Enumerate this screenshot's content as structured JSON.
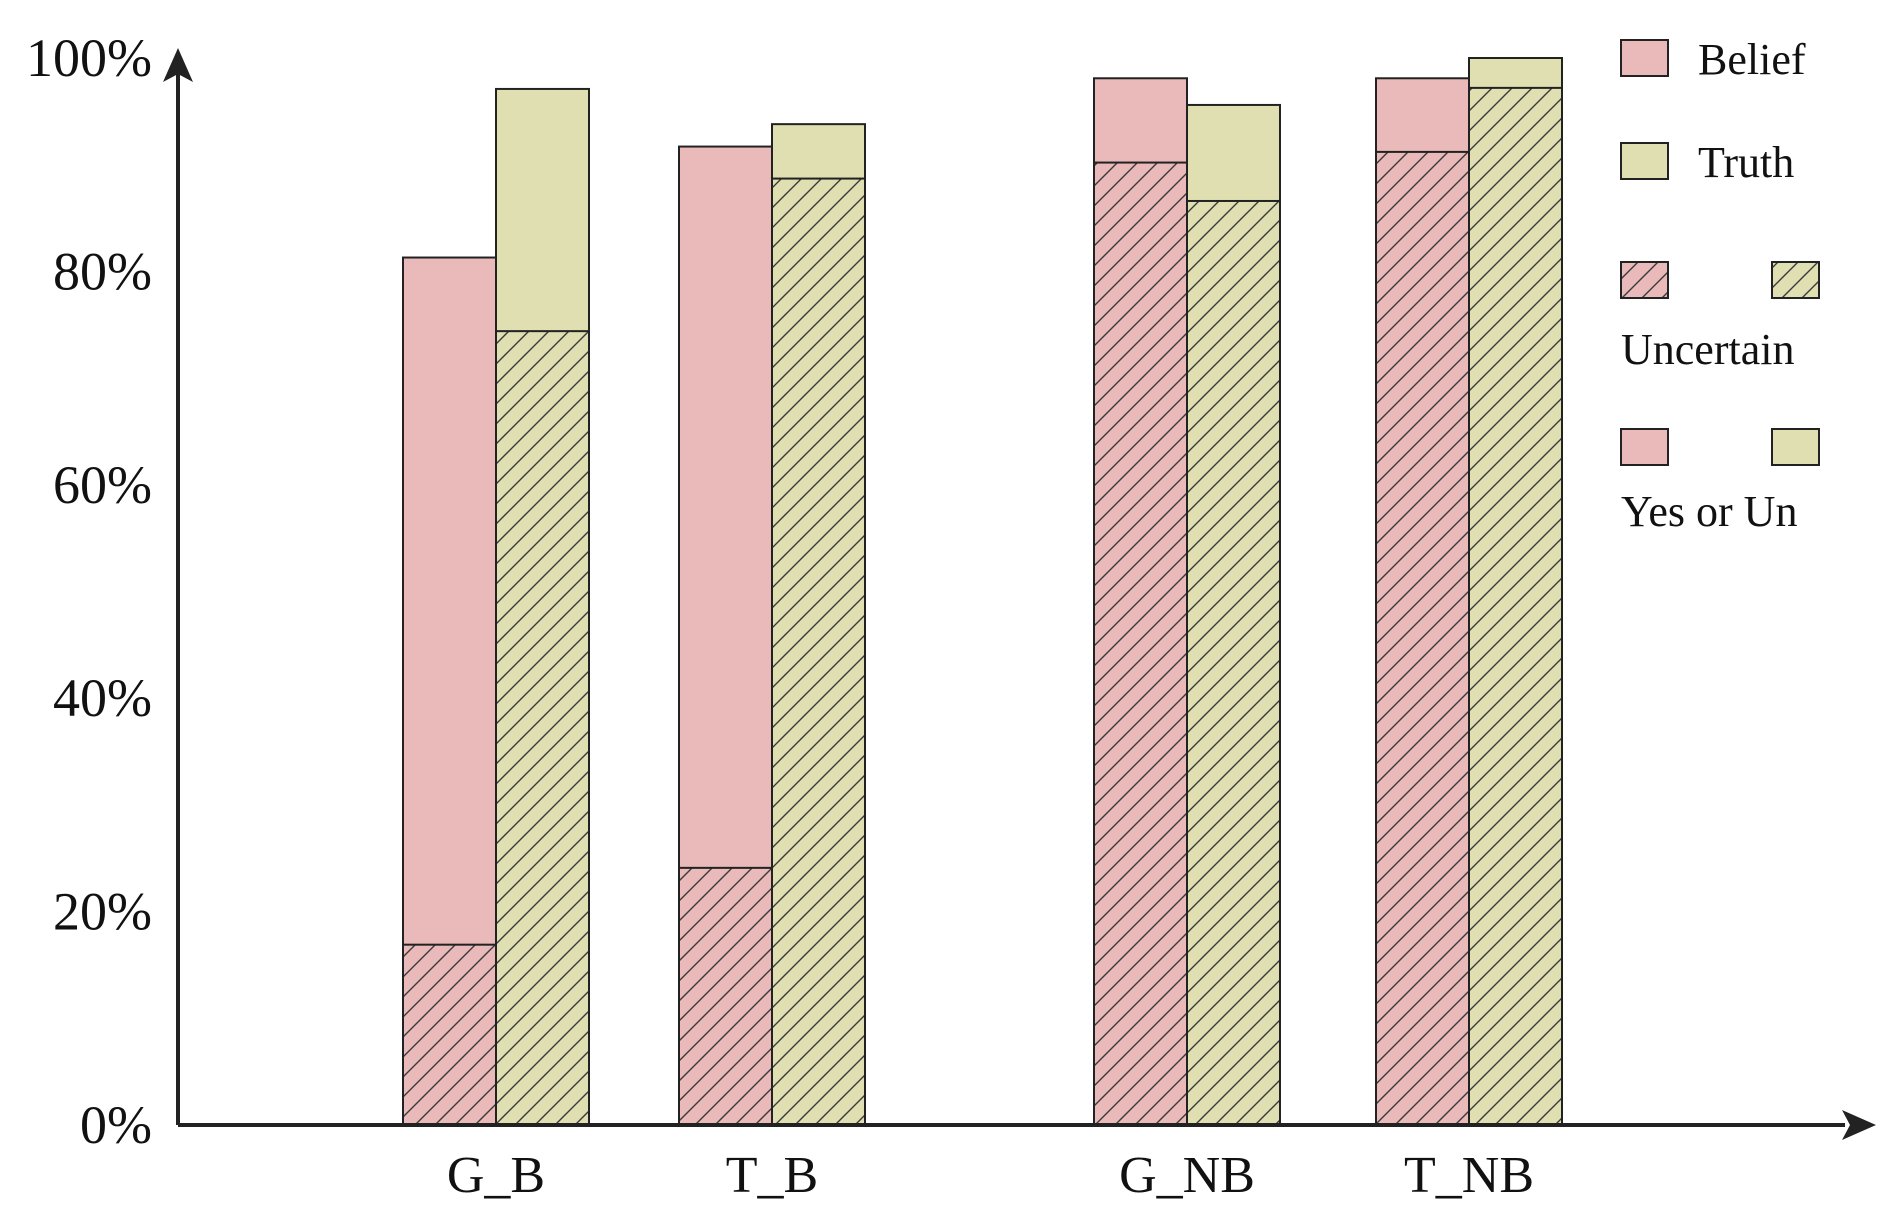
{
  "chart_data": {
    "type": "bar",
    "stacked": true,
    "categories": [
      "G_B",
      "T_B",
      "G_NB",
      "T_NB"
    ],
    "ylim": [
      0,
      100
    ],
    "yticks": [
      "0%",
      "20%",
      "40%",
      "60%",
      "80%",
      "100%"
    ],
    "grid": false,
    "legend_position": "right",
    "series": [
      {
        "name": "Belief",
        "color": "#eababa",
        "uncertain": [
          16.9,
          24.1,
          90.2,
          91.2
        ],
        "yes_or_un": [
          81.3,
          91.7,
          98.1,
          98.1
        ]
      },
      {
        "name": "Truth",
        "color": "#e0dfb1",
        "uncertain": [
          74.4,
          88.7,
          86.6,
          97.2
        ],
        "yes_or_un": [
          97.1,
          93.8,
          95.6,
          100.0
        ]
      }
    ],
    "legend": {
      "belief": "Belief",
      "truth": "Truth",
      "uncertain": "Uncertain",
      "yes_or_un": "Yes or Un"
    }
  }
}
